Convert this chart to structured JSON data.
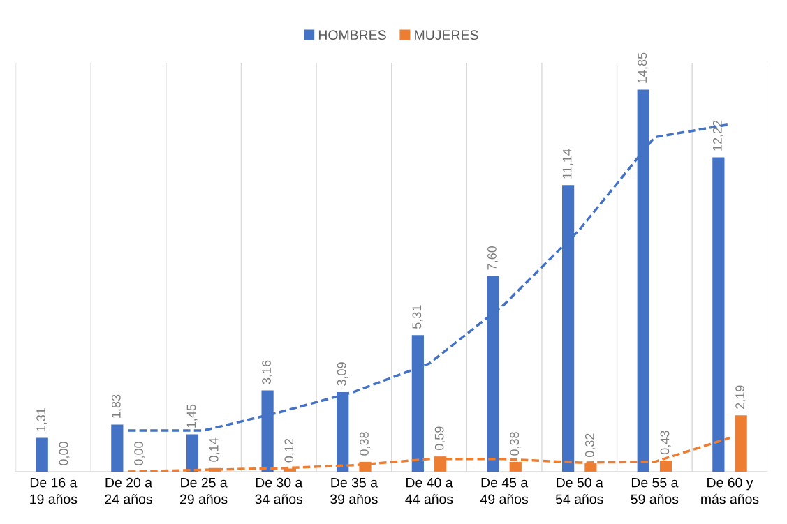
{
  "chart_data": {
    "type": "bar",
    "categories": [
      "De 16 a\n19 años",
      "De 20 a\n24 años",
      "De 25 a\n29 años",
      "De 30 a\n34 años",
      "De 35 a\n39 años",
      "De 40 a\n44 años",
      "De 45 a\n49 años",
      "De 50 a\n54 años",
      "De 55 a\n59 años",
      "De 60 y\nmás años"
    ],
    "series": [
      {
        "name": "HOMBRES",
        "color": "#4472c4",
        "values": [
          1.31,
          1.83,
          1.45,
          3.16,
          3.09,
          5.31,
          7.6,
          11.14,
          14.85,
          12.22
        ],
        "value_labels": [
          "1,31",
          "1,83",
          "1,45",
          "3,16",
          "3,09",
          "5,31",
          "7,60",
          "11,14",
          "14,85",
          "12,22"
        ]
      },
      {
        "name": "MUJERES",
        "color": "#ed7d31",
        "values": [
          0.0,
          0.0,
          0.14,
          0.12,
          0.38,
          0.59,
          0.38,
          0.32,
          0.43,
          2.19
        ],
        "value_labels": [
          "0,00",
          "0,00",
          "0,14",
          "0,12",
          "0,38",
          "0,59",
          "0,38",
          "0,32",
          "0,43",
          "2,19"
        ]
      },
      {
        "type": "line",
        "color": "#4472c4",
        "line_style": "dashed",
        "values": [
          null,
          1.6,
          1.6,
          2.3,
          3.1,
          4.2,
          6.5,
          9.4,
          13.0,
          13.5
        ]
      },
      {
        "type": "line",
        "color": "#ed7d31",
        "line_style": "dashed",
        "values": [
          null,
          0.0,
          0.07,
          0.13,
          0.25,
          0.49,
          0.49,
          0.35,
          0.38,
          1.31
        ]
      }
    ],
    "grid": "x",
    "legend": "top",
    "tick_labels": "x"
  }
}
